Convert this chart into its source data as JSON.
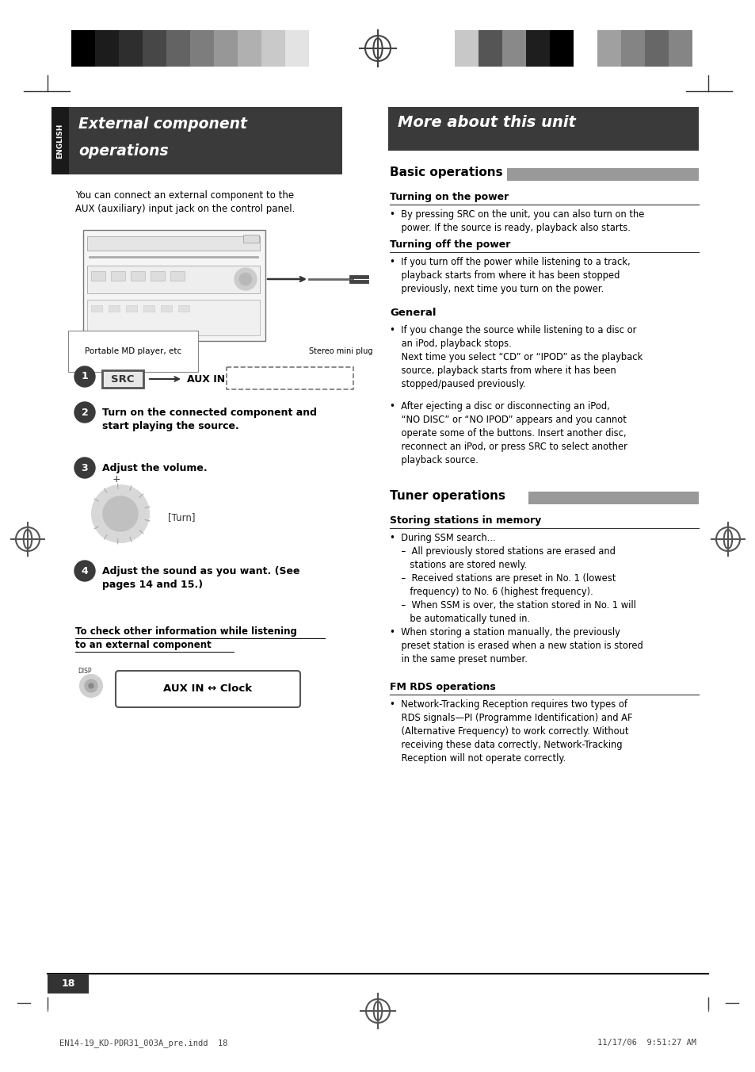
{
  "page_bg": "#ffffff",
  "left_intro": "You can connect an external component to the\nAUX (auxiliary) input jack on the control panel.",
  "basic_ops_title": "Basic operations",
  "turning_on_title": "Turning on the power",
  "turning_on_text": "•  By pressing SRC on the unit, you can also turn on the\n    power. If the source is ready, playback also starts.",
  "turning_off_title": "Turning off the power",
  "turning_off_text": "•  If you turn off the power while listening to a track,\n    playback starts from where it has been stopped\n    previously, next time you turn on the power.",
  "general_title": "General",
  "general_text1": "•  If you change the source while listening to a disc or\n    an iPod, playback stops.\n    Next time you select “CD” or “IPOD” as the playback\n    source, playback starts from where it has been\n    stopped/paused previously.",
  "general_text2": "•  After ejecting a disc or disconnecting an iPod,\n    “NO DISC” or “NO IPOD” appears and you cannot\n    operate some of the buttons. Insert another disc,\n    reconnect an iPod, or press SRC to select another\n    playback source.",
  "tuner_ops_title": "Tuner operations",
  "storing_title": "Storing stations in memory",
  "storing_text": "•  During SSM search...\n    –  All previously stored stations are erased and\n       stations are stored newly.\n    –  Received stations are preset in No. 1 (lowest\n       frequency) to No. 6 (highest frequency).\n    –  When SSM is over, the station stored in No. 1 will\n       be automatically tuned in.\n•  When storing a station manually, the previously\n    preset station is erased when a new station is stored\n    in the same preset number.",
  "fm_rds_title": "FM RDS operations",
  "fm_rds_text": "•  Network-Tracking Reception requires two types of\n    RDS signals—PI (Programme Identification) and AF\n    (Alternative Frequency) to work correctly. Without\n    receiving these data correctly, Network-Tracking\n    Reception will not operate correctly.",
  "step2_text": "Turn on the connected component and\nstart playing the source.",
  "step3_text": "Adjust the volume.",
  "step4_text": "Adjust the sound as you want. (See\npages 14 and 15.)",
  "check_title": "To check other information while listening\nto an external component",
  "aux_clock_label": "AUX IN ↔ Clock",
  "page_num": "18",
  "footer_left": "EN14-19_KD-PDR31_003A_pre.indd  18",
  "footer_right": "11/17/06  9:51:27 AM",
  "bar_colors_left": [
    "#000000",
    "#1c1c1c",
    "#2e2e2e",
    "#474747",
    "#636363",
    "#7d7d7d",
    "#979797",
    "#b0b0b0",
    "#c9c9c9",
    "#e3e3e3",
    "#ffffff"
  ],
  "bar_colors_right": [
    "#c8c8c8",
    "#555555",
    "#898989",
    "#1e1e1e",
    "#000000",
    "#ffffff",
    "#a0a0a0",
    "#848484",
    "#676767",
    "#858585"
  ]
}
